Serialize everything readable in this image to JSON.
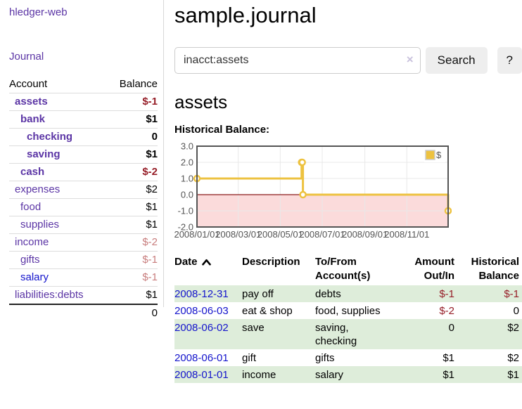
{
  "app": {
    "title": "hledger-web"
  },
  "sidebar": {
    "journal_link": "Journal",
    "accounts_table": {
      "account_header": "Account",
      "balance_header": "Balance",
      "rows": [
        {
          "name": "assets",
          "balance": "$-1",
          "depth": 1,
          "bold": true,
          "balance_tone": "neg"
        },
        {
          "name": "bank",
          "balance": "$1",
          "depth": 2,
          "bold": true,
          "balance_tone": "normal"
        },
        {
          "name": "checking",
          "balance": "0",
          "depth": 3,
          "bold": true,
          "balance_tone": "normal"
        },
        {
          "name": "saving",
          "balance": "$1",
          "depth": 3,
          "bold": true,
          "balance_tone": "normal"
        },
        {
          "name": "cash",
          "balance": "$-2",
          "depth": 2,
          "bold": true,
          "balance_tone": "neg"
        },
        {
          "name": "expenses",
          "balance": "$2",
          "depth": 1,
          "bold": false,
          "balance_tone": "normal"
        },
        {
          "name": "food",
          "balance": "$1",
          "depth": 2,
          "bold": false,
          "balance_tone": "normal"
        },
        {
          "name": "supplies",
          "balance": "$1",
          "depth": 2,
          "bold": false,
          "balance_tone": "normal"
        },
        {
          "name": "income",
          "balance": "$-2",
          "depth": 1,
          "bold": false,
          "balance_tone": "neg-soft"
        },
        {
          "name": "gifts",
          "balance": "$-1",
          "depth": 2,
          "bold": false,
          "balance_tone": "neg-soft"
        },
        {
          "name": "salary",
          "balance": "$-1",
          "depth": 2,
          "bold": false,
          "balance_tone": "neg-soft",
          "link_color": "blue"
        },
        {
          "name": "liabilities:debts",
          "balance": "$1",
          "depth": 1,
          "bold": false,
          "balance_tone": "normal"
        }
      ],
      "total": "0"
    }
  },
  "header": {
    "title": "sample.journal"
  },
  "search": {
    "value": "inacct:assets",
    "clear_icon": "×",
    "button_label": "Search",
    "help_label": "?"
  },
  "account_page": {
    "title": "assets",
    "chart_label": "Historical Balance:"
  },
  "chart_data": {
    "type": "line",
    "style": "step",
    "title": "Historical Balance:",
    "x_range": [
      "2008-01-01",
      "2008-12-31"
    ],
    "ylim": [
      -2,
      3
    ],
    "grid": true,
    "legend_position": "top-right",
    "series": [
      {
        "name": "$",
        "color": "#EDC240",
        "points": [
          [
            "2008-01-01",
            1
          ],
          [
            "2008-06-01",
            2
          ],
          [
            "2008-06-02",
            2
          ],
          [
            "2008-06-03",
            0
          ],
          [
            "2008-12-31",
            -1
          ]
        ]
      }
    ],
    "x_tick_labels": [
      "2008/01/01",
      "2008/03/01",
      "2008/05/01",
      "2008/07/01",
      "2008/09/01",
      "2008/11/01"
    ],
    "y_tick_labels": [
      "3.0",
      "2.0",
      "1.0",
      "0.0",
      "-1.0",
      "-2.0"
    ],
    "negative_region_fill": "#FBDBDB",
    "zero_line_color": "#8B1A1A",
    "border_color": "#545454",
    "grid_color": "#e8e8e8",
    "tick_text_color": "#545454"
  },
  "register_table": {
    "headers": {
      "date": "Date",
      "description": "Description",
      "accounts": "To/From Account(s)",
      "amount": "Amount Out/In",
      "balance": "Historical Balance"
    },
    "sort_column": "date",
    "sort_direction": "ascending",
    "rows": [
      {
        "date": "2008-12-31",
        "description": "pay off",
        "accounts": "debts",
        "amount": "$-1",
        "balance": "$-1",
        "amount_tone": "neg",
        "balance_tone": "neg"
      },
      {
        "date": "2008-06-03",
        "description": "eat & shop",
        "accounts": "food, supplies",
        "amount": "$-2",
        "balance": "0",
        "amount_tone": "neg",
        "balance_tone": "normal"
      },
      {
        "date": "2008-06-02",
        "description": "save",
        "accounts": "saving, checking",
        "amount": "0",
        "balance": "$2",
        "amount_tone": "normal",
        "balance_tone": "normal"
      },
      {
        "date": "2008-06-01",
        "description": "gift",
        "accounts": "gifts",
        "amount": "$1",
        "balance": "$2",
        "amount_tone": "normal",
        "balance_tone": "normal"
      },
      {
        "date": "2008-01-01",
        "description": "income",
        "accounts": "salary",
        "amount": "$1",
        "balance": "$1",
        "amount_tone": "normal",
        "balance_tone": "normal"
      }
    ]
  },
  "colors": {
    "purple_link": "#5B35A5",
    "blue_link": "#1414CC",
    "negative_strong": "#961E28",
    "negative_soft": "#C87D7D",
    "row_stripe_green": "#DEEDDA",
    "series_gold": "#EDC240",
    "button_bg": "#eeeeee"
  }
}
